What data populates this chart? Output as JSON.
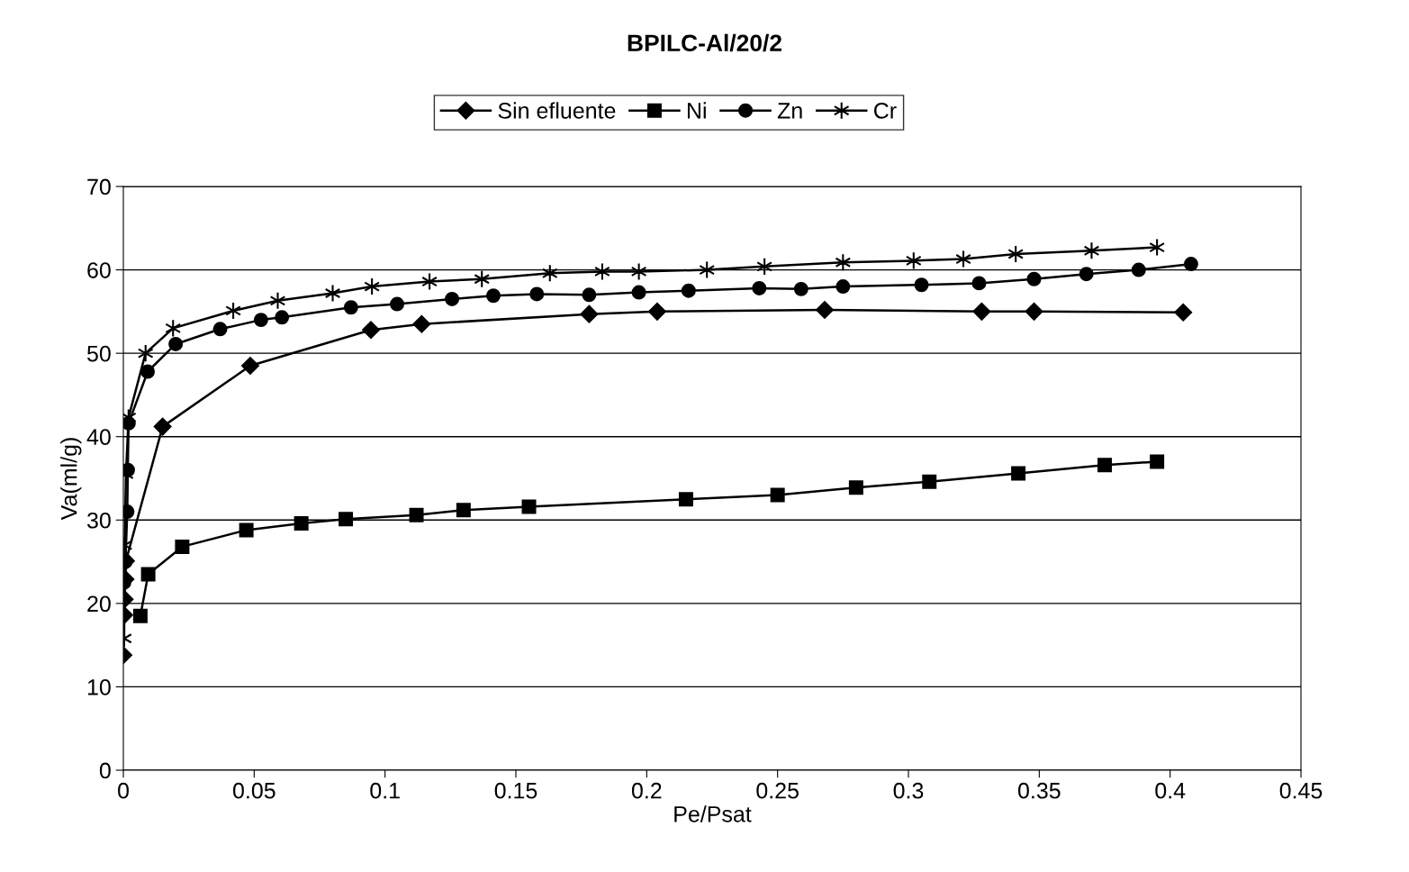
{
  "chart_data": {
    "type": "line",
    "title": "BPILC-Al/20/2",
    "xlabel": "Pe/Psat",
    "ylabel": "Va(ml/g)",
    "xlim": [
      0,
      0.45
    ],
    "xticks": [
      0,
      0.05,
      0.1,
      0.15,
      0.2,
      0.25,
      0.3,
      0.35,
      0.4,
      0.45
    ],
    "ylim": [
      0,
      70
    ],
    "yticks": [
      0,
      10,
      20,
      30,
      40,
      50,
      60,
      70
    ],
    "grid": "y",
    "legend": "top",
    "line_style": "solid",
    "series": [
      {
        "name": "Sin efluente",
        "color": "#000000",
        "marker": "diamond",
        "x": [
          0,
          0.0003,
          0.0005,
          0.0008,
          0.001,
          0.015,
          0.0485,
          0.0946,
          0.114,
          0.178,
          0.204,
          0.268,
          0.328,
          0.348,
          0.405
        ],
        "values": [
          13.8,
          18.6,
          20.5,
          22.9,
          25.1,
          41.2,
          48.5,
          52.8,
          53.5,
          54.7,
          55,
          55.2,
          55,
          55,
          54.9
        ]
      },
      {
        "name": "Ni",
        "color": "#000000",
        "marker": "square",
        "x": [
          0.0065,
          0.0095,
          0.0225,
          0.047,
          0.068,
          0.085,
          0.112,
          0.13,
          0.155,
          0.215,
          0.25,
          0.28,
          0.308,
          0.342,
          0.375,
          0.395
        ],
        "values": [
          18.5,
          23.5,
          26.8,
          28.8,
          29.6,
          30.1,
          30.6,
          31.2,
          31.6,
          32.5,
          33,
          33.9,
          34.6,
          35.6,
          36.6,
          37
        ]
      },
      {
        "name": "Zn",
        "color": "#000000",
        "marker": "circle",
        "x": [
          0.0003,
          0.0008,
          0.0015,
          0.0017,
          0.002,
          0.0093,
          0.02,
          0.037,
          0.0526,
          0.0606,
          0.087,
          0.1046,
          0.1256,
          0.1414,
          0.158,
          0.178,
          0.197,
          0.216,
          0.243,
          0.259,
          0.275,
          0.305,
          0.327,
          0.348,
          0.368,
          0.388,
          0.408
        ],
        "values": [
          22.5,
          25,
          31,
          36,
          41.6,
          47.8,
          51.1,
          52.9,
          54,
          54.3,
          55.5,
          55.9,
          56.5,
          56.9,
          57.1,
          57,
          57.3,
          57.5,
          57.8,
          57.7,
          58,
          58.2,
          58.4,
          58.9,
          59.5,
          60,
          60.7
        ]
      },
      {
        "name": "Cr",
        "color": "#000000",
        "marker": "cross",
        "x": [
          0.0003,
          0.0005,
          0.001,
          0.002,
          0.0085,
          0.019,
          0.042,
          0.059,
          0.08,
          0.095,
          0.117,
          0.137,
          0.163,
          0.183,
          0.197,
          0.223,
          0.245,
          0.275,
          0.302,
          0.321,
          0.341,
          0.37,
          0.395
        ],
        "values": [
          15.8,
          27,
          35.5,
          42.3,
          50,
          53,
          55.1,
          56.3,
          57.2,
          58,
          58.6,
          58.9,
          59.6,
          59.8,
          59.8,
          60,
          60.4,
          60.9,
          61.1,
          61.3,
          61.9,
          62.3,
          62.7
        ]
      }
    ]
  }
}
